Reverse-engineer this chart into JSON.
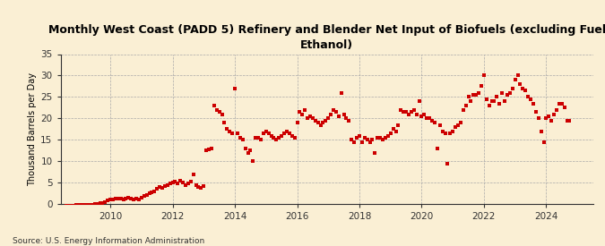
{
  "title": "Monthly West Coast (PADD 5) Refinery and Blender Net Input of Biofuels (excluding Fuel\nEthanol)",
  "ylabel": "Thousand Barrels per Day",
  "source": "Source: U.S. Energy Information Administration",
  "background_color": "#faefd4",
  "marker_color": "#cc0000",
  "ylim": [
    0,
    35
  ],
  "yticks": [
    0,
    5,
    10,
    15,
    20,
    25,
    30,
    35
  ],
  "xlim_start": 2008.4,
  "xlim_end": 2025.5,
  "xticks": [
    2010,
    2012,
    2014,
    2016,
    2018,
    2020,
    2022,
    2024
  ],
  "data": [
    [
      2008.583,
      -0.3
    ],
    [
      2008.667,
      -0.3
    ],
    [
      2008.75,
      -0.3
    ],
    [
      2008.833,
      -0.3
    ],
    [
      2008.917,
      -0.2
    ],
    [
      2009.0,
      -0.2
    ],
    [
      2009.083,
      -0.2
    ],
    [
      2009.167,
      -0.2
    ],
    [
      2009.25,
      -0.2
    ],
    [
      2009.333,
      -0.2
    ],
    [
      2009.417,
      -0.2
    ],
    [
      2009.5,
      0.0
    ],
    [
      2009.583,
      0.1
    ],
    [
      2009.667,
      0.2
    ],
    [
      2009.75,
      0.3
    ],
    [
      2009.833,
      0.5
    ],
    [
      2009.917,
      0.8
    ],
    [
      2010.0,
      1.0
    ],
    [
      2010.083,
      1.1
    ],
    [
      2010.167,
      1.2
    ],
    [
      2010.25,
      1.3
    ],
    [
      2010.333,
      1.2
    ],
    [
      2010.417,
      1.1
    ],
    [
      2010.5,
      1.3
    ],
    [
      2010.583,
      1.5
    ],
    [
      2010.667,
      1.4
    ],
    [
      2010.75,
      1.0
    ],
    [
      2010.833,
      1.2
    ],
    [
      2010.917,
      1.1
    ],
    [
      2011.0,
      1.5
    ],
    [
      2011.083,
      2.0
    ],
    [
      2011.167,
      2.2
    ],
    [
      2011.25,
      2.5
    ],
    [
      2011.333,
      2.8
    ],
    [
      2011.417,
      3.0
    ],
    [
      2011.5,
      3.5
    ],
    [
      2011.583,
      4.0
    ],
    [
      2011.667,
      3.8
    ],
    [
      2011.75,
      4.2
    ],
    [
      2011.833,
      4.5
    ],
    [
      2011.917,
      4.8
    ],
    [
      2012.0,
      5.0
    ],
    [
      2012.083,
      5.2
    ],
    [
      2012.167,
      4.8
    ],
    [
      2012.25,
      5.5
    ],
    [
      2012.333,
      5.0
    ],
    [
      2012.417,
      4.5
    ],
    [
      2012.5,
      4.8
    ],
    [
      2012.583,
      5.2
    ],
    [
      2012.667,
      7.0
    ],
    [
      2012.75,
      4.5
    ],
    [
      2012.833,
      4.0
    ],
    [
      2012.917,
      3.8
    ],
    [
      2013.0,
      4.2
    ],
    [
      2013.083,
      12.5
    ],
    [
      2013.167,
      12.8
    ],
    [
      2013.25,
      13.0
    ],
    [
      2013.333,
      23.0
    ],
    [
      2013.417,
      22.0
    ],
    [
      2013.5,
      21.5
    ],
    [
      2013.583,
      21.0
    ],
    [
      2013.667,
      19.0
    ],
    [
      2013.75,
      17.5
    ],
    [
      2013.833,
      17.0
    ],
    [
      2013.917,
      16.5
    ],
    [
      2014.0,
      27.0
    ],
    [
      2014.083,
      16.5
    ],
    [
      2014.167,
      15.5
    ],
    [
      2014.25,
      15.0
    ],
    [
      2014.333,
      13.0
    ],
    [
      2014.417,
      12.0
    ],
    [
      2014.5,
      12.5
    ],
    [
      2014.583,
      10.0
    ],
    [
      2014.667,
      15.5
    ],
    [
      2014.75,
      15.5
    ],
    [
      2014.833,
      15.0
    ],
    [
      2014.917,
      16.5
    ],
    [
      2015.0,
      17.0
    ],
    [
      2015.083,
      16.5
    ],
    [
      2015.167,
      16.0
    ],
    [
      2015.25,
      15.5
    ],
    [
      2015.333,
      15.0
    ],
    [
      2015.417,
      15.5
    ],
    [
      2015.5,
      16.0
    ],
    [
      2015.583,
      16.5
    ],
    [
      2015.667,
      17.0
    ],
    [
      2015.75,
      16.5
    ],
    [
      2015.833,
      16.0
    ],
    [
      2015.917,
      15.5
    ],
    [
      2016.0,
      19.0
    ],
    [
      2016.083,
      21.5
    ],
    [
      2016.167,
      21.0
    ],
    [
      2016.25,
      22.0
    ],
    [
      2016.333,
      20.0
    ],
    [
      2016.417,
      20.5
    ],
    [
      2016.5,
      20.0
    ],
    [
      2016.583,
      19.5
    ],
    [
      2016.667,
      19.0
    ],
    [
      2016.75,
      18.5
    ],
    [
      2016.833,
      19.0
    ],
    [
      2016.917,
      19.5
    ],
    [
      2017.0,
      20.0
    ],
    [
      2017.083,
      21.0
    ],
    [
      2017.167,
      22.0
    ],
    [
      2017.25,
      21.5
    ],
    [
      2017.333,
      20.5
    ],
    [
      2017.417,
      26.0
    ],
    [
      2017.5,
      21.0
    ],
    [
      2017.583,
      20.0
    ],
    [
      2017.667,
      19.5
    ],
    [
      2017.75,
      15.0
    ],
    [
      2017.833,
      14.5
    ],
    [
      2017.917,
      15.5
    ],
    [
      2018.0,
      16.0
    ],
    [
      2018.083,
      14.5
    ],
    [
      2018.167,
      15.5
    ],
    [
      2018.25,
      15.0
    ],
    [
      2018.333,
      14.5
    ],
    [
      2018.417,
      15.0
    ],
    [
      2018.5,
      12.0
    ],
    [
      2018.583,
      15.5
    ],
    [
      2018.667,
      15.5
    ],
    [
      2018.75,
      15.0
    ],
    [
      2018.833,
      15.5
    ],
    [
      2018.917,
      16.0
    ],
    [
      2019.0,
      16.5
    ],
    [
      2019.083,
      17.5
    ],
    [
      2019.167,
      17.0
    ],
    [
      2019.25,
      18.5
    ],
    [
      2019.333,
      22.0
    ],
    [
      2019.417,
      21.5
    ],
    [
      2019.5,
      21.5
    ],
    [
      2019.583,
      21.0
    ],
    [
      2019.667,
      21.5
    ],
    [
      2019.75,
      22.0
    ],
    [
      2019.833,
      21.0
    ],
    [
      2019.917,
      24.0
    ],
    [
      2020.0,
      20.5
    ],
    [
      2020.083,
      21.0
    ],
    [
      2020.167,
      20.0
    ],
    [
      2020.25,
      20.0
    ],
    [
      2020.333,
      19.5
    ],
    [
      2020.417,
      19.0
    ],
    [
      2020.5,
      13.0
    ],
    [
      2020.583,
      18.5
    ],
    [
      2020.667,
      17.0
    ],
    [
      2020.75,
      16.5
    ],
    [
      2020.833,
      9.5
    ],
    [
      2020.917,
      16.5
    ],
    [
      2021.0,
      17.0
    ],
    [
      2021.083,
      18.0
    ],
    [
      2021.167,
      18.5
    ],
    [
      2021.25,
      19.0
    ],
    [
      2021.333,
      22.0
    ],
    [
      2021.417,
      23.0
    ],
    [
      2021.5,
      25.0
    ],
    [
      2021.583,
      24.0
    ],
    [
      2021.667,
      25.5
    ],
    [
      2021.75,
      25.5
    ],
    [
      2021.833,
      26.0
    ],
    [
      2021.917,
      27.5
    ],
    [
      2022.0,
      30.0
    ],
    [
      2022.083,
      24.5
    ],
    [
      2022.167,
      23.0
    ],
    [
      2022.25,
      24.0
    ],
    [
      2022.333,
      24.0
    ],
    [
      2022.417,
      25.0
    ],
    [
      2022.5,
      23.5
    ],
    [
      2022.583,
      26.0
    ],
    [
      2022.667,
      24.0
    ],
    [
      2022.75,
      25.5
    ],
    [
      2022.833,
      26.0
    ],
    [
      2022.917,
      27.0
    ],
    [
      2023.0,
      29.0
    ],
    [
      2023.083,
      30.0
    ],
    [
      2023.167,
      28.0
    ],
    [
      2023.25,
      27.0
    ],
    [
      2023.333,
      26.5
    ],
    [
      2023.417,
      25.0
    ],
    [
      2023.5,
      24.5
    ],
    [
      2023.583,
      23.5
    ],
    [
      2023.667,
      21.5
    ],
    [
      2023.75,
      20.0
    ],
    [
      2023.833,
      17.0
    ],
    [
      2023.917,
      14.5
    ],
    [
      2024.0,
      20.0
    ],
    [
      2024.083,
      20.5
    ],
    [
      2024.167,
      19.5
    ],
    [
      2024.25,
      21.0
    ],
    [
      2024.333,
      22.0
    ],
    [
      2024.417,
      23.5
    ],
    [
      2024.5,
      23.5
    ],
    [
      2024.583,
      22.5
    ],
    [
      2024.667,
      19.5
    ],
    [
      2024.75,
      19.5
    ]
  ]
}
